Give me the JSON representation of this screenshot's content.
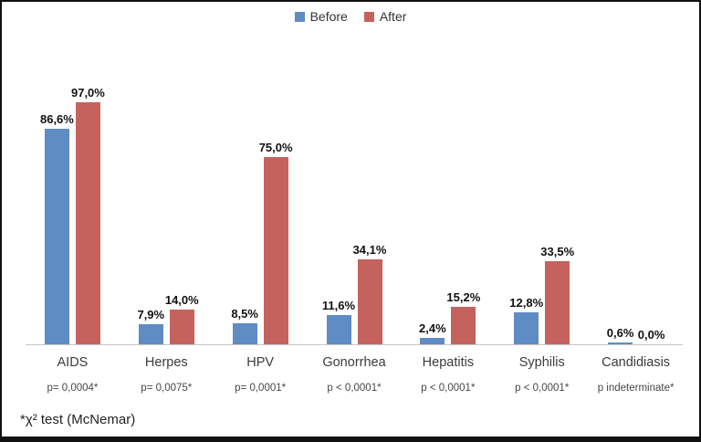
{
  "legend": {
    "before_label": "Before",
    "after_label": "After"
  },
  "colors": {
    "before": "#5f8cc3",
    "after": "#c4635d",
    "axis": "#c6c6c6"
  },
  "footnote": "*χ² test (McNemar)",
  "chart_data": {
    "type": "bar",
    "title": "",
    "xlabel": "",
    "ylabel": "",
    "ylim": [
      0,
      100
    ],
    "grid": false,
    "legend_position": "top-center",
    "categories": [
      "AIDS",
      "Herpes",
      "HPV",
      "Gonorrhea",
      "Hepatitis",
      "Syphilis",
      "Candidiasis"
    ],
    "series": [
      {
        "name": "Before",
        "values": [
          86.6,
          7.9,
          8.5,
          11.6,
          2.4,
          12.8,
          0.6
        ]
      },
      {
        "name": "After",
        "values": [
          97.0,
          14.0,
          75.0,
          34.1,
          15.2,
          33.5,
          0.0
        ]
      }
    ],
    "value_labels": {
      "before": [
        "86,6%",
        "7,9%",
        "8,5%",
        "11,6%",
        "2,4%",
        "12,8%",
        "0,6%"
      ],
      "after": [
        "97,0%",
        "14,0%",
        "75,0%",
        "34,1%",
        "15,2%",
        "33,5%",
        "0,0%"
      ]
    },
    "p_values": [
      "p= 0,0004*",
      "p= 0,0075*",
      "p= 0,0001*",
      "p < 0,0001*",
      "p < 0,0001*",
      "p < 0,0001*",
      "p indeterminate*"
    ]
  }
}
